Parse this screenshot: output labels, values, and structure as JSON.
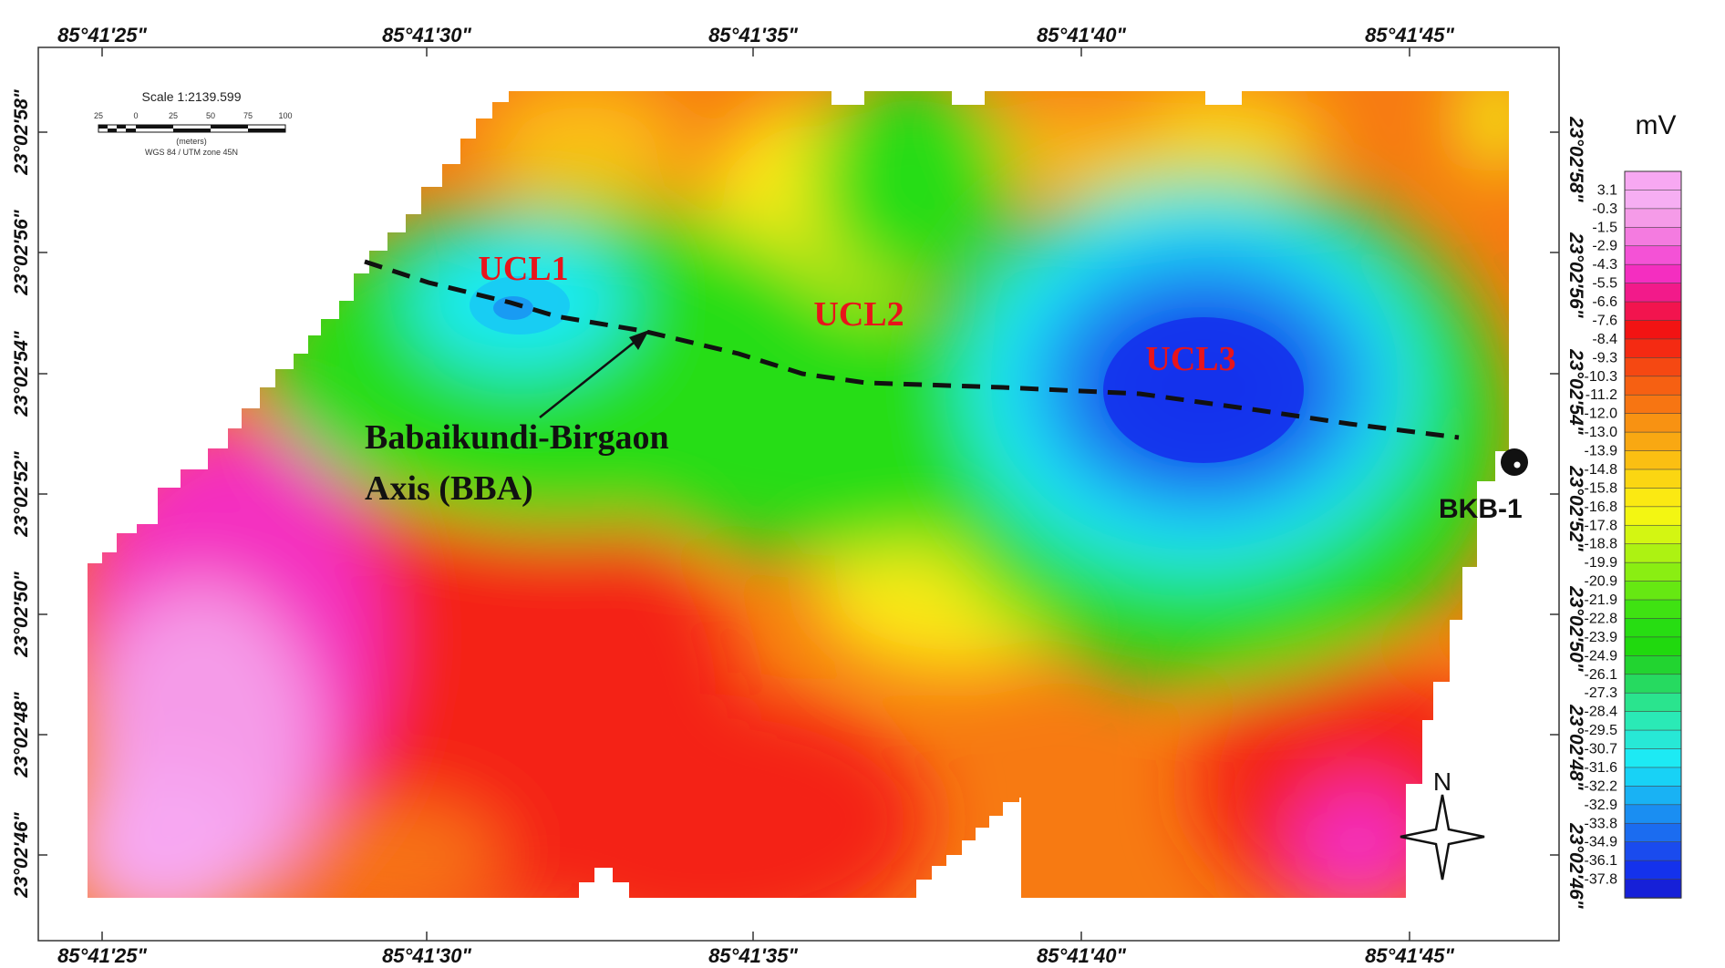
{
  "map": {
    "top_lon_ticks": [
      "85°41'25\"",
      "85°41'30\"",
      "85°41'35\"",
      "85°41'40\"",
      "85°41'45\""
    ],
    "bottom_lon_ticks": [
      "85°41'25\"",
      "85°41'30\"",
      "85°41'35\"",
      "85°41'40\"",
      "85°41'45\""
    ],
    "left_lat_ticks": [
      "23°02'58\"",
      "23°02'56\"",
      "23°02'54\"",
      "23°02'52\"",
      "23°02'50\"",
      "23°02'48\"",
      "23°02'46\""
    ],
    "right_lat_ticks": [
      "23°02'58\"",
      "23°02'56\"",
      "23°02'54\"",
      "23°02'52\"",
      "23°02'50\"",
      "23°02'48\"",
      "23°02'46\""
    ],
    "zones": [
      "UCL1",
      "UCL2",
      "UCL3"
    ],
    "annotation_line1": "Babaikundi-Birgaon",
    "annotation_line2": "Axis (BBA)",
    "well_label": "BKB-1",
    "north_label": "N"
  },
  "scale_bar": {
    "title": "Scale 1:2139.599",
    "ticks": [
      "25",
      "0",
      "25",
      "50",
      "75",
      "100"
    ],
    "unit": "(meters)",
    "projection": "WGS 84 / UTM zone 45N"
  },
  "legend": {
    "unit": "mV",
    "values": [
      "3.1",
      "-0.3",
      "-1.5",
      "-2.9",
      "-4.3",
      "-5.5",
      "-6.6",
      "-7.6",
      "-8.4",
      "-9.3",
      "-10.3",
      "-11.2",
      "-12.0",
      "-13.0",
      "-13.9",
      "-14.8",
      "-15.8",
      "-16.8",
      "-17.8",
      "-18.8",
      "-19.9",
      "-20.9",
      "-21.9",
      "-22.8",
      "-23.9",
      "-24.9",
      "-26.1",
      "-27.3",
      "-28.4",
      "-29.5",
      "-30.7",
      "-31.6",
      "-32.2",
      "-32.9",
      "-33.8",
      "-34.9",
      "-36.1",
      "-37.8"
    ],
    "colors": [
      "#f7a8f2",
      "#f6aef3",
      "#f59be8",
      "#f47be0",
      "#f452d6",
      "#f42ec0",
      "#f21a8a",
      "#f2144e",
      "#f21313",
      "#f42a12",
      "#f54812",
      "#f66012",
      "#f77512",
      "#f89212",
      "#f9a812",
      "#fbbf12",
      "#fbd612",
      "#fbe912",
      "#f3f612",
      "#d3f612",
      "#adf212",
      "#8aee12",
      "#66e812",
      "#3fe212",
      "#27dd12",
      "#20d90e",
      "#22d430",
      "#26da60",
      "#2ae48e",
      "#2aeab6",
      "#27e8d6",
      "#1deaf4",
      "#18d2f6",
      "#19b2f4",
      "#1a8ef2",
      "#1b6cf0",
      "#1a4bee",
      "#1432ec",
      "#1620d8"
    ]
  }
}
